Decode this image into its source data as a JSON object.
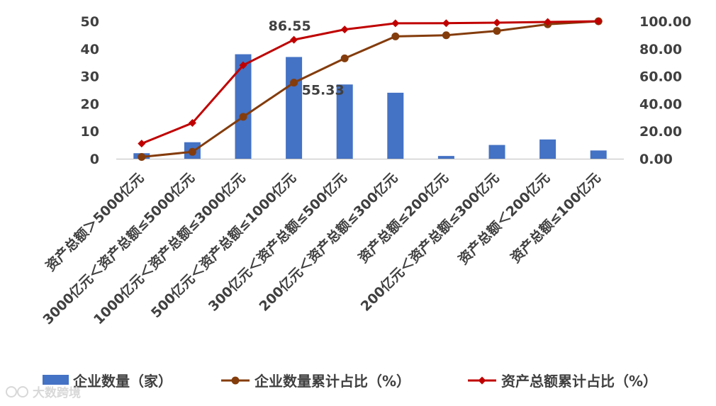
{
  "chart_data": {
    "type": "bar",
    "categories": [
      "资产总额＞5000亿元",
      "3000亿元＜资产总额≤5000亿元",
      "1000亿元＜资产总额≤3000亿元",
      "500亿元＜资产总额≤1000亿元",
      "300亿元＜资产总额≤500亿元",
      "200亿元＜资产总额≤300亿元",
      "资产总额≤200亿元",
      "200亿元＜资产总额≤300亿元",
      "资产总额＜200亿元",
      "资产总额≤100亿元"
    ],
    "series": [
      {
        "name": "企业数量（家）",
        "type": "bar",
        "axis": "left",
        "color": "#4472C4",
        "values": [
          2,
          6,
          38,
          37,
          27,
          24,
          1,
          5,
          7,
          3
        ]
      },
      {
        "name": "企业数量累计占比（%）",
        "type": "line",
        "axis": "right",
        "color": "#843C0C",
        "marker": "circle",
        "values": [
          1.3,
          5.0,
          30.5,
          55.33,
          73.0,
          89.0,
          89.8,
          93.0,
          97.8,
          100.0
        ]
      },
      {
        "name": "资产总额累计占比（%）",
        "type": "line",
        "axis": "right",
        "color": "#C00000",
        "marker": "diamond",
        "values": [
          11.0,
          26.0,
          68.0,
          86.55,
          94.0,
          98.5,
          98.6,
          99.0,
          99.5,
          100.0
        ]
      }
    ],
    "y_left": {
      "min": 0,
      "max": 50,
      "ticks": [
        "0",
        "10",
        "20",
        "30",
        "40",
        "50"
      ]
    },
    "y_right": {
      "min": 0,
      "max": 100,
      "ticks": [
        "0.00",
        "20.00",
        "40.00",
        "60.00",
        "80.00",
        "100.00"
      ]
    },
    "data_labels": [
      {
        "series": 2,
        "index": 3,
        "text": "86.55"
      },
      {
        "series": 1,
        "index": 3,
        "text": "55.33"
      }
    ],
    "grid": false,
    "legend": "bottom"
  },
  "watermark": "大数跨境"
}
